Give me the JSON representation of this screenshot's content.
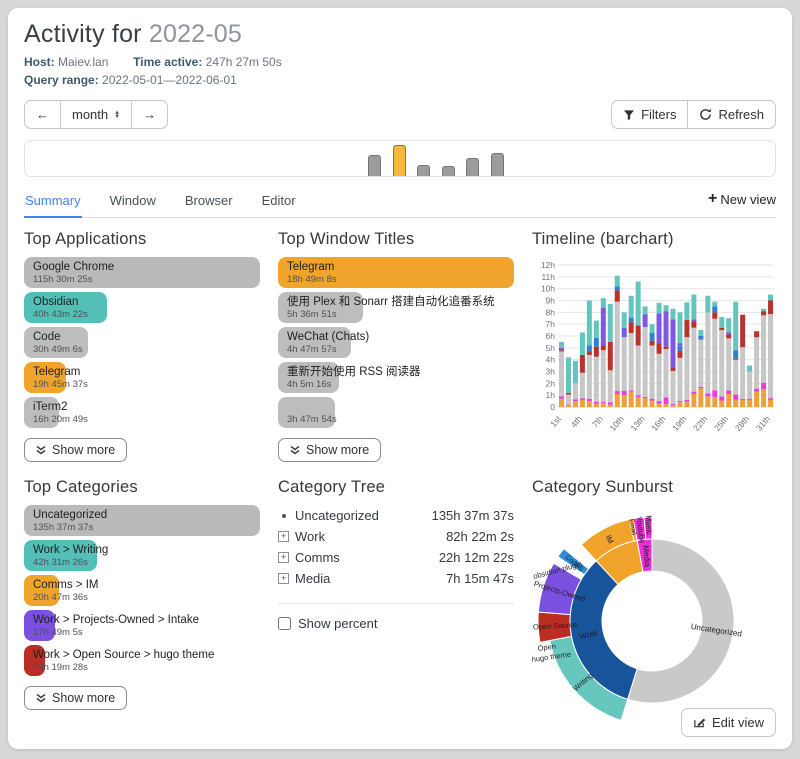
{
  "header": {
    "title_prefix": "Activity for",
    "title_period": "2022-05",
    "host_label": "Host:",
    "host": "Maiev.lan",
    "time_active_label": "Time active:",
    "time_active": "247h 27m 50s",
    "query_range_label": "Query range:",
    "query_range": "2022-05-01—2022-06-01"
  },
  "controls": {
    "prev": "←",
    "next": "→",
    "period": "month",
    "filters_label": "Filters",
    "refresh_label": "Refresh"
  },
  "tabs": {
    "items": [
      {
        "label": "Summary",
        "active": true
      },
      {
        "label": "Window",
        "active": false
      },
      {
        "label": "Browser",
        "active": false
      },
      {
        "label": "Editor",
        "active": false
      }
    ],
    "new_view_plus": "+",
    "new_view_label": "New view"
  },
  "sections": {
    "top_applications": {
      "title": "Top Applications",
      "show_more_label": "Show more",
      "items": [
        {
          "label": "Google Chrome",
          "duration": "115h 30m 25s",
          "color": "#b9b9b9",
          "width_pct": 100
        },
        {
          "label": "Obsidian",
          "duration": "40h 43m 22s",
          "color": "#54bfb7",
          "width_pct": 35
        },
        {
          "label": "Code",
          "duration": "30h 49m 6s",
          "color": "#bdbdbd",
          "width_pct": 27
        },
        {
          "label": "Telegram",
          "duration": "19h 45m 37s",
          "color": "#f0a42c",
          "width_pct": 18
        },
        {
          "label": "iTerm2",
          "duration": "16h 20m 49s",
          "color": "#bdbdbd",
          "width_pct": 15
        }
      ]
    },
    "top_window_titles": {
      "title": "Top Window Titles",
      "show_more_label": "Show more",
      "items": [
        {
          "label": "Telegram",
          "duration": "18h 49m 8s",
          "color": "#f0a42c",
          "width_pct": 100
        },
        {
          "label": "使用 Plex 和 Sonarr 搭建自动化追番系统",
          "duration": "5h 36m 51s",
          "color": "#bdbdbd",
          "width_pct": 36
        },
        {
          "label": "WeChat (Chats)",
          "duration": "4h 47m 57s",
          "color": "#bdbdbd",
          "width_pct": 31
        },
        {
          "label": "重新开始使用 RSS 阅读器",
          "duration": "4h 5m 16s",
          "color": "#bdbdbd",
          "width_pct": 26
        },
        {
          "label": "",
          "duration": "3h 47m 54s",
          "color": "#bdbdbd",
          "width_pct": 24
        }
      ]
    },
    "timeline": {
      "title": "Timeline (barchart)"
    },
    "top_categories": {
      "title": "Top Categories",
      "show_more_label": "Show more",
      "items": [
        {
          "label": "Uncategorized",
          "duration": "135h 37m 37s",
          "color": "#b9b9b9",
          "width_pct": 100
        },
        {
          "label": "Work > Writing",
          "duration": "42h 31m 26s",
          "color": "#54bfb7",
          "width_pct": 31
        },
        {
          "label": "Comms > IM",
          "duration": "20h 47m 36s",
          "color": "#f0a42c",
          "width_pct": 15
        },
        {
          "label": "Work > Projects-Owned > Intake",
          "duration": "17h 49m 5s",
          "color": "#7b4fe0",
          "width_pct": 13
        },
        {
          "label": "Work > Open Source > hugo theme",
          "duration": "10h 19m 28s",
          "color": "#bb2d23",
          "width_pct": 9
        }
      ]
    },
    "category_tree": {
      "title": "Category Tree",
      "rows": [
        {
          "icon": "bullet",
          "label": "Uncategorized",
          "duration": "135h 37m 37s"
        },
        {
          "icon": "expand",
          "label": "Work",
          "duration": "82h 22m 2s"
        },
        {
          "icon": "expand",
          "label": "Comms",
          "duration": "22h 12m 22s"
        },
        {
          "icon": "expand",
          "label": "Media",
          "duration": "7h 15m 47s"
        }
      ],
      "show_percent_label": "Show percent"
    },
    "category_sunburst": {
      "title": "Category Sunburst"
    }
  },
  "footer": {
    "edit_view_label": "Edit view"
  },
  "chart_data": [
    {
      "id": "period-overview",
      "type": "bar",
      "values": [
        0.6,
        0.88,
        0.3,
        0.28,
        0.5,
        0.66
      ],
      "highlight_index": 1,
      "bar_color": "#9c9c9c",
      "highlight_color": "#f5b83b"
    },
    {
      "id": "timeline-barchart",
      "type": "stacked-bar",
      "title": "Timeline (barchart)",
      "ylim": [
        0,
        12
      ],
      "ytick_labels": [
        "0",
        "1h",
        "2h",
        "3h",
        "4h",
        "5h",
        "6h",
        "7h",
        "8h",
        "9h",
        "10h",
        "11h",
        "12h"
      ],
      "xtick_labels": [
        "1st",
        "4th",
        "7th",
        "10th",
        "13th",
        "16th",
        "19th",
        "22th",
        "25th",
        "28th",
        "31th"
      ],
      "xtick_positions": [
        0,
        3,
        6,
        9,
        12,
        15,
        18,
        21,
        24,
        27,
        30
      ],
      "segment_colors": [
        "#eba23b",
        "#e93ce9",
        "#c7c7c7",
        "#b7332b",
        "#2f7fd4",
        "#7e57e2",
        "#63c5be"
      ],
      "days": [
        [
          0.7,
          0.2,
          3.8,
          0.1,
          0,
          0.2,
          0.5
        ],
        [
          0.15,
          0.05,
          0.85,
          0.15,
          0,
          0,
          3.0
        ],
        [
          0.5,
          0.15,
          1.35,
          0,
          0,
          0,
          1.9
        ],
        [
          0.6,
          0.15,
          2.15,
          1.5,
          0,
          0,
          1.9
        ],
        [
          0.5,
          0.2,
          3.7,
          0.3,
          0.5,
          0,
          3.8
        ],
        [
          0.3,
          0.15,
          3.8,
          0.85,
          0.75,
          0,
          1.45
        ],
        [
          0.35,
          0.1,
          4.35,
          0.4,
          0,
          3.2,
          0.8
        ],
        [
          0.2,
          0.2,
          2.7,
          2.4,
          0,
          0,
          3.2
        ],
        [
          1.1,
          0.25,
          7.55,
          0.95,
          0.35,
          0,
          0.9
        ],
        [
          1.0,
          0.35,
          4.55,
          0,
          0,
          0.8,
          1.3
        ],
        [
          1.3,
          0.1,
          4.85,
          0.9,
          0.4,
          0,
          1.85
        ],
        [
          0.85,
          0.15,
          4.2,
          1.7,
          0,
          0,
          3.7
        ],
        [
          0.75,
          0.1,
          5.9,
          0,
          0,
          1.1,
          0.65
        ],
        [
          0.55,
          0.15,
          4.5,
          0.4,
          0.65,
          0,
          0.75
        ],
        [
          0.3,
          0.2,
          4.0,
          0.9,
          0,
          2.5,
          0.9
        ],
        [
          0.25,
          0.55,
          4.1,
          0.2,
          0,
          3.0,
          0.5
        ],
        [
          0.15,
          0.1,
          2.8,
          0.25,
          0,
          4.1,
          0.9
        ],
        [
          0.4,
          0.1,
          3.65,
          0.6,
          0.35,
          0.3,
          2.6
        ],
        [
          0.45,
          0.15,
          5.3,
          1.45,
          0,
          0,
          1.5
        ],
        [
          1.1,
          0.2,
          5.4,
          0.55,
          0,
          0.15,
          2.1
        ],
        [
          1.6,
          0.1,
          4.0,
          0,
          0.3,
          0,
          0.5
        ],
        [
          0.9,
          0.25,
          6.85,
          0,
          0,
          0,
          1.4
        ],
        [
          0.85,
          0.55,
          6.05,
          0.55,
          0.5,
          0,
          0.4
        ],
        [
          0.55,
          0.35,
          5.6,
          0.2,
          0,
          0,
          0.9
        ],
        [
          1.1,
          0.3,
          4.4,
          0.35,
          0,
          0.15,
          1.2
        ],
        [
          0.6,
          0.45,
          2.95,
          0.1,
          0.7,
          0,
          4.1
        ],
        [
          0.6,
          0.1,
          4.35,
          2.75,
          0,
          0,
          0
        ],
        [
          0.6,
          0.1,
          2.3,
          0,
          0,
          0,
          0.5
        ],
        [
          1.3,
          0.25,
          4.35,
          0.5,
          0,
          0,
          0
        ],
        [
          1.5,
          0.55,
          5.7,
          0.35,
          0,
          0,
          0.2
        ],
        [
          0.6,
          0.15,
          7.1,
          1.15,
          0,
          0,
          0.5
        ]
      ]
    },
    {
      "id": "category-sunburst",
      "type": "pie",
      "total": "247h 27m 50s",
      "inner_ring": [
        {
          "label": "Uncategorized",
          "start": 0.0,
          "end": 0.548,
          "color": "#c9c9c9",
          "label_r": 65
        },
        {
          "label": "Work",
          "start": 0.548,
          "end": 0.881,
          "color": "#17549c",
          "label_r": 65
        },
        {
          "label": "Comms",
          "start": 0.881,
          "end": 0.971,
          "color": "#f0a42c",
          "label_r": 0
        },
        {
          "label": "Media",
          "start": 0.971,
          "end": 1.0,
          "color": "#e531d8",
          "label_r": 65
        }
      ],
      "outer_ring": [
        {
          "label": "Writing",
          "start": 0.548,
          "end": 0.72,
          "color": "#66c7bf",
          "thick": false,
          "label_r": 92
        },
        {
          "label": "Open Source",
          "start": 0.72,
          "end": 0.7625,
          "color": "#bb2d23",
          "thick": true,
          "label_r": 97
        },
        {
          "label": "Projects-Owned",
          "start": 0.7625,
          "end": 0.8345,
          "color": "#7b4fe0",
          "thick": true,
          "label_r": 97
        },
        {
          "label": "Coding",
          "start": 0.8455,
          "end": 0.8595,
          "color": "#2f8fd6",
          "thick": true,
          "label_r": 97
        },
        {
          "label": "IM",
          "start": 0.881,
          "end": 0.9648,
          "color": "#f0a42c",
          "thick": false,
          "label_r": 92
        },
        {
          "label": "Email",
          "start": 0.9648,
          "end": 0.971,
          "color": "#f0a42c",
          "thick": false,
          "label_r": 96
        },
        {
          "label": "Youtube",
          "start": 0.971,
          "end": 0.988,
          "color": "#e531d8",
          "thick": false,
          "label_r": 92
        },
        {
          "label": "Music",
          "start": 0.988,
          "end": 1.0,
          "color": "#e531d8",
          "thick": false,
          "label_r": 96
        }
      ],
      "outside_labels": [
        {
          "text": "obsidian plugin",
          "x": 2,
          "y": 74,
          "rot": -15
        },
        {
          "text": "Open",
          "x": 6,
          "y": 146,
          "rot": -8
        },
        {
          "text": "hugo theme",
          "x": 0,
          "y": 157,
          "rot": -8
        }
      ]
    }
  ]
}
